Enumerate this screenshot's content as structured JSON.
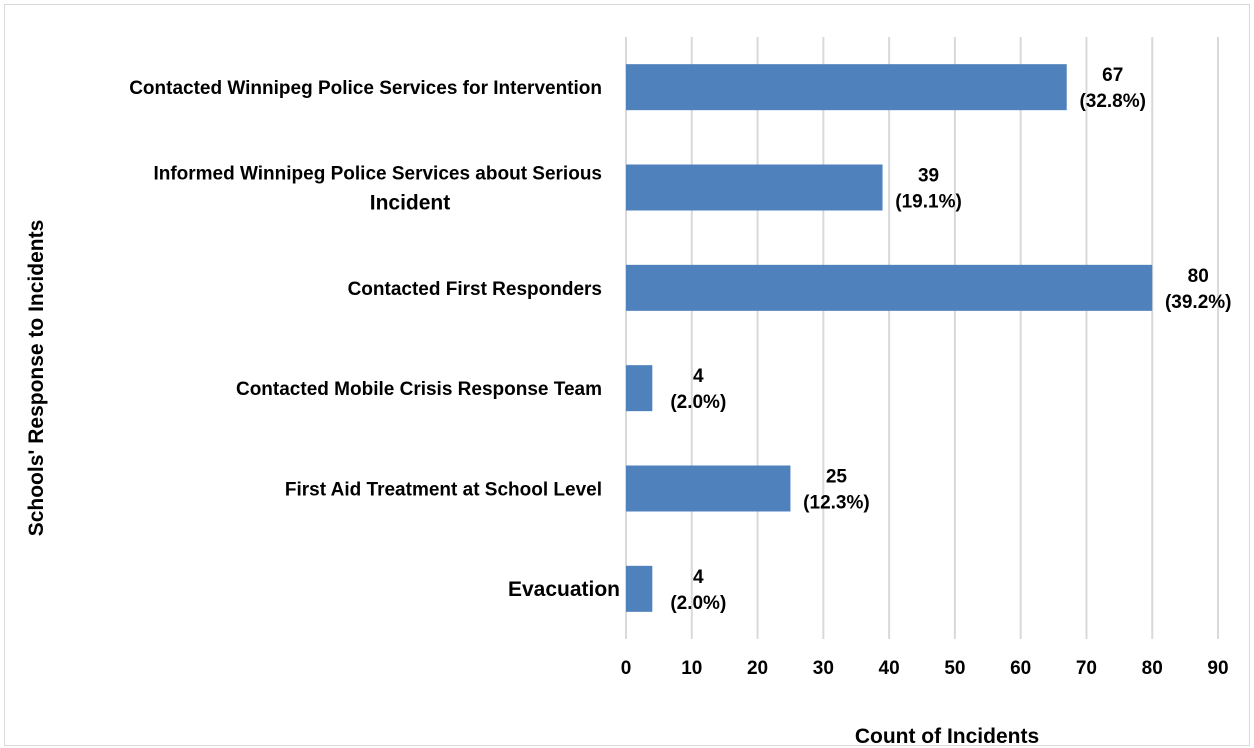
{
  "chart_data": {
    "type": "bar",
    "orientation": "horizontal",
    "categories": [
      [
        "Contacted Winnipeg Police Services for Intervention"
      ],
      [
        "Informed Winnipeg Police Services about Serious",
        "Incident"
      ],
      [
        "Contacted First Responders"
      ],
      [
        "Contacted Mobile Crisis Response Team"
      ],
      [
        "First Aid Treatment at School Level"
      ],
      [
        "Evacuation"
      ]
    ],
    "values": [
      67,
      39,
      80,
      4,
      25,
      4
    ],
    "percent_labels": [
      "(32.8%)",
      "(19.1%)",
      "(39.2%)",
      "(2.0%)",
      "(12.3%)",
      "(2.0%)"
    ],
    "value_labels": [
      "67",
      "39",
      "80",
      "4",
      "25",
      "4"
    ],
    "xlabel": "Count of Incidents",
    "ylabel": "Schools' Response to Incidents",
    "xlim": [
      0,
      90
    ],
    "xticks": [
      0,
      10,
      20,
      30,
      40,
      50,
      60,
      70,
      80,
      90
    ],
    "grid": "vertical",
    "bar_color": "#4f81bd",
    "grid_color": "#d9d9d9"
  }
}
